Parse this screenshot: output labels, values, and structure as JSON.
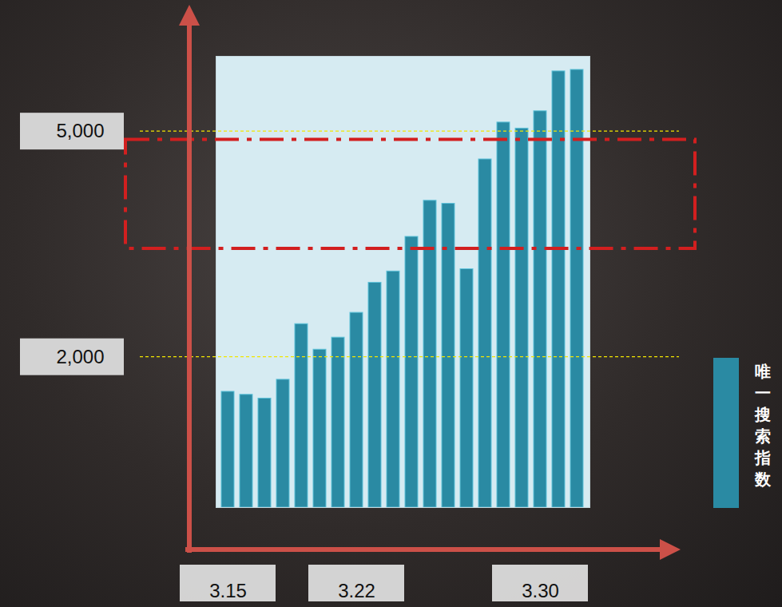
{
  "chart_data": {
    "type": "bar",
    "categories": [
      "3.15",
      null,
      null,
      null,
      null,
      null,
      null,
      "3.22",
      null,
      null,
      null,
      null,
      null,
      null,
      null,
      null,
      null,
      "3.30",
      null,
      null
    ],
    "series": [
      {
        "name": "唯一搜索指数",
        "color": "#2a8aa3",
        "values": [
          1540,
          1500,
          1450,
          1700,
          2440,
          2100,
          2260,
          2590,
          2990,
          3140,
          3600,
          4080,
          4040,
          3170,
          4630,
          5120,
          5040,
          5270,
          5800,
          5820
        ]
      }
    ],
    "ylim": [
      0,
      6000
    ],
    "yticks": [
      2000,
      5000
    ],
    "grid": true,
    "legend": "right",
    "highlight_range": [
      3440,
      4890
    ]
  }
}
